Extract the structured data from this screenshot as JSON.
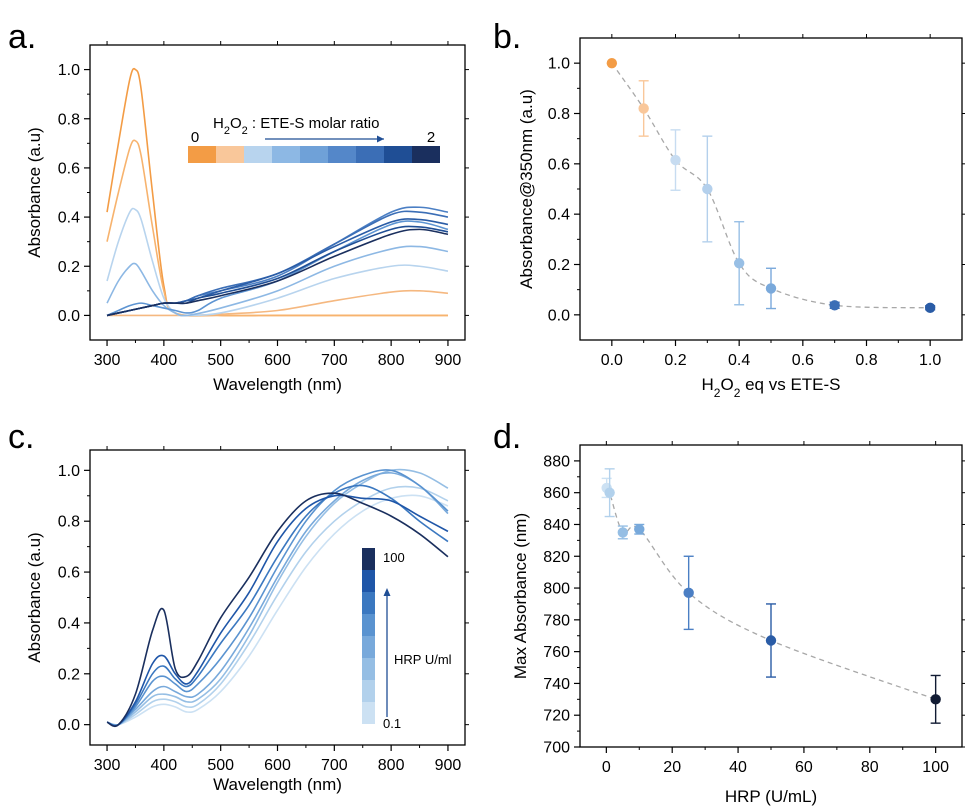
{
  "chart_data": [
    {
      "panel": "a.",
      "type": "line",
      "xlabel": "Wavelength (nm)",
      "ylabel": "Absorbance (a.u)",
      "xlim": [
        270,
        930
      ],
      "ylim": [
        -0.1,
        1.1
      ],
      "xticks": [
        300,
        400,
        500,
        600,
        700,
        800,
        900
      ],
      "yticks": [
        0.0,
        0.2,
        0.4,
        0.6,
        0.8,
        1.0
      ],
      "legend": {
        "title_pre": "H",
        "title_sub": "2",
        "title_mid": "O",
        "title_sub2": "2",
        "title_post": " : ETE-S molar ratio",
        "min_label": "0",
        "max_label": "2",
        "colors": [
          "#F39C45",
          "#F9C79A",
          "#B8D4EE",
          "#8DB8E4",
          "#6FA1D8",
          "#5487C9",
          "#3B6EB6",
          "#1F4E95",
          "#1A2F5E"
        ]
      },
      "series": [
        {
          "color": "#F39C45",
          "x": [
            300,
            320,
            340,
            350,
            360,
            380,
            400,
            420,
            500,
            600,
            700,
            800,
            900
          ],
          "y": [
            0.42,
            0.7,
            0.96,
            1.0,
            0.92,
            0.5,
            0.12,
            0.01,
            0.0,
            0.0,
            0.0,
            0.0,
            0.0
          ]
        },
        {
          "color": "#F7B36E",
          "x": [
            300,
            320,
            340,
            350,
            360,
            380,
            400,
            420,
            500,
            600,
            700,
            800,
            900
          ],
          "y": [
            0.3,
            0.5,
            0.68,
            0.71,
            0.65,
            0.36,
            0.1,
            0.01,
            0.0,
            0.0,
            0.0,
            0.0,
            0.0
          ]
        },
        {
          "color": "#F5B880",
          "x": [
            300,
            320,
            340,
            360,
            380,
            400,
            420,
            440,
            500,
            600,
            700,
            800,
            850,
            900
          ],
          "y": [
            0.0,
            0.0,
            0.0,
            0.0,
            0.0,
            0.0,
            0.0,
            0.0,
            0.005,
            0.02,
            0.06,
            0.095,
            0.1,
            0.09
          ]
        },
        {
          "color": "#B8D4EE",
          "x": [
            300,
            320,
            340,
            350,
            360,
            380,
            400,
            420,
            440,
            500,
            600,
            700,
            800,
            850,
            900
          ],
          "y": [
            0.14,
            0.3,
            0.42,
            0.43,
            0.39,
            0.22,
            0.07,
            0.01,
            0.0,
            0.01,
            0.07,
            0.15,
            0.2,
            0.2,
            0.18
          ]
        },
        {
          "color": "#8DB8E4",
          "x": [
            300,
            320,
            340,
            350,
            360,
            380,
            400,
            420,
            440,
            500,
            600,
            700,
            800,
            850,
            900
          ],
          "y": [
            0.05,
            0.14,
            0.2,
            0.21,
            0.18,
            0.1,
            0.04,
            0.01,
            0.0,
            0.03,
            0.1,
            0.2,
            0.27,
            0.28,
            0.26
          ]
        },
        {
          "color": "#5D94D2",
          "x": [
            300,
            320,
            340,
            360,
            380,
            400,
            420,
            440,
            460,
            500,
            600,
            700,
            800,
            850,
            900
          ],
          "y": [
            0.0,
            0.02,
            0.04,
            0.05,
            0.04,
            0.03,
            0.02,
            0.01,
            0.02,
            0.07,
            0.14,
            0.26,
            0.37,
            0.38,
            0.35
          ]
        },
        {
          "color": "#4B7FC4",
          "x": [
            300,
            340,
            380,
            400,
            420,
            440,
            460,
            500,
            600,
            700,
            800,
            850,
            900
          ],
          "y": [
            0.0,
            0.02,
            0.04,
            0.05,
            0.05,
            0.06,
            0.08,
            0.1,
            0.16,
            0.29,
            0.42,
            0.44,
            0.42
          ]
        },
        {
          "color": "#3B6EB6",
          "x": [
            300,
            340,
            380,
            400,
            420,
            440,
            460,
            500,
            600,
            700,
            800,
            850,
            900
          ],
          "y": [
            0.0,
            0.02,
            0.04,
            0.05,
            0.05,
            0.06,
            0.08,
            0.11,
            0.17,
            0.29,
            0.41,
            0.42,
            0.4
          ]
        },
        {
          "color": "#2A5CA6",
          "x": [
            300,
            340,
            380,
            400,
            420,
            440,
            460,
            500,
            600,
            700,
            800,
            850,
            900
          ],
          "y": [
            0.0,
            0.02,
            0.04,
            0.05,
            0.05,
            0.06,
            0.07,
            0.1,
            0.17,
            0.28,
            0.38,
            0.39,
            0.37
          ]
        },
        {
          "color": "#1F4E95",
          "x": [
            300,
            340,
            380,
            400,
            420,
            440,
            460,
            500,
            600,
            700,
            800,
            850,
            900
          ],
          "y": [
            0.0,
            0.02,
            0.04,
            0.05,
            0.05,
            0.05,
            0.07,
            0.09,
            0.15,
            0.26,
            0.35,
            0.36,
            0.34
          ]
        },
        {
          "color": "#1A2F5E",
          "x": [
            300,
            340,
            380,
            400,
            420,
            440,
            460,
            500,
            600,
            700,
            800,
            850,
            900
          ],
          "y": [
            0.0,
            0.02,
            0.04,
            0.05,
            0.05,
            0.05,
            0.06,
            0.08,
            0.14,
            0.24,
            0.33,
            0.35,
            0.33
          ]
        }
      ]
    },
    {
      "panel": "b.",
      "type": "scatter",
      "xlabel_parts": [
        "H",
        "2",
        "O",
        "2",
        " eq vs ETE-S"
      ],
      "ylabel": "Absorbance@350nm (a.u)",
      "xlim": [
        -0.1,
        1.1
      ],
      "ylim": [
        -0.1,
        1.1
      ],
      "xticks": [
        0.0,
        0.2,
        0.4,
        0.6,
        0.8,
        1.0
      ],
      "yticks": [
        0.0,
        0.2,
        0.4,
        0.6,
        0.8,
        1.0
      ],
      "points": [
        {
          "x": 0.0,
          "y": 1.0,
          "err": 0.0,
          "color": "#F39C45"
        },
        {
          "x": 0.1,
          "y": 0.82,
          "err": 0.11,
          "color": "#F9C79A"
        },
        {
          "x": 0.2,
          "y": 0.615,
          "err": 0.12,
          "color": "#C7DCF1"
        },
        {
          "x": 0.3,
          "y": 0.5,
          "err": 0.21,
          "color": "#B4D0EC"
        },
        {
          "x": 0.4,
          "y": 0.205,
          "err": 0.165,
          "color": "#98BFE5"
        },
        {
          "x": 0.5,
          "y": 0.105,
          "err": 0.08,
          "color": "#7AA9DB"
        },
        {
          "x": 0.7,
          "y": 0.038,
          "err": 0.012,
          "color": "#3B6EB6"
        },
        {
          "x": 1.0,
          "y": 0.028,
          "err": 0.008,
          "color": "#2A5CA6"
        }
      ]
    },
    {
      "panel": "c.",
      "type": "line",
      "xlabel": "Wavelength (nm)",
      "ylabel": "Absorbance (a.u)",
      "xlim": [
        270,
        930
      ],
      "ylim": [
        -0.08,
        1.08
      ],
      "xticks": [
        300,
        400,
        500,
        600,
        700,
        800,
        900
      ],
      "yticks": [
        0.0,
        0.2,
        0.4,
        0.6,
        0.8,
        1.0
      ],
      "legend": {
        "label": "HRP U/ml",
        "max_label": "100",
        "min_label": "0.1",
        "colors": [
          "#1A2F5E",
          "#1F56A8",
          "#3B78C0",
          "#5A93D0",
          "#78A9DB",
          "#95BEE4",
          "#B2D1EC",
          "#CCE1F3"
        ]
      },
      "series": [
        {
          "color": "#CCE1F3",
          "x": [
            300,
            320,
            350,
            380,
            400,
            420,
            440,
            460,
            500,
            550,
            600,
            650,
            700,
            750,
            800,
            850,
            900
          ],
          "y": [
            0.01,
            0.0,
            0.03,
            0.07,
            0.08,
            0.07,
            0.05,
            0.06,
            0.13,
            0.27,
            0.45,
            0.62,
            0.75,
            0.84,
            0.89,
            0.9,
            0.86
          ]
        },
        {
          "color": "#B2D1EC",
          "x": [
            300,
            320,
            350,
            380,
            400,
            420,
            440,
            460,
            500,
            550,
            600,
            650,
            700,
            750,
            800,
            850,
            900
          ],
          "y": [
            0.01,
            0.0,
            0.04,
            0.09,
            0.1,
            0.09,
            0.07,
            0.08,
            0.16,
            0.32,
            0.51,
            0.68,
            0.8,
            0.88,
            0.93,
            0.93,
            0.88
          ]
        },
        {
          "color": "#95BEE4",
          "x": [
            300,
            320,
            350,
            380,
            400,
            420,
            440,
            460,
            500,
            550,
            600,
            650,
            700,
            750,
            800,
            850,
            900
          ],
          "y": [
            0.01,
            0.0,
            0.05,
            0.11,
            0.12,
            0.11,
            0.09,
            0.1,
            0.18,
            0.35,
            0.56,
            0.74,
            0.87,
            0.95,
            1.0,
            0.99,
            0.93
          ]
        },
        {
          "color": "#78A9DB",
          "x": [
            300,
            320,
            350,
            380,
            400,
            420,
            440,
            460,
            500,
            550,
            600,
            650,
            700,
            750,
            800,
            850,
            900
          ],
          "y": [
            0.01,
            0.0,
            0.06,
            0.13,
            0.15,
            0.13,
            0.11,
            0.12,
            0.21,
            0.38,
            0.58,
            0.76,
            0.88,
            0.96,
            0.99,
            0.94,
            0.83
          ]
        },
        {
          "color": "#5A93D0",
          "x": [
            300,
            320,
            350,
            380,
            400,
            420,
            440,
            460,
            500,
            550,
            600,
            650,
            700,
            750,
            800,
            850,
            900
          ],
          "y": [
            0.01,
            0.0,
            0.07,
            0.17,
            0.19,
            0.16,
            0.13,
            0.16,
            0.26,
            0.42,
            0.62,
            0.8,
            0.92,
            0.98,
            1.0,
            0.94,
            0.84
          ]
        },
        {
          "color": "#3B78C0",
          "x": [
            300,
            320,
            350,
            380,
            400,
            420,
            440,
            460,
            500,
            550,
            600,
            650,
            700,
            750,
            800,
            850,
            900
          ],
          "y": [
            0.01,
            0.0,
            0.08,
            0.2,
            0.23,
            0.18,
            0.15,
            0.19,
            0.32,
            0.47,
            0.66,
            0.82,
            0.91,
            0.94,
            0.89,
            0.8,
            0.72
          ]
        },
        {
          "color": "#1F56A8",
          "x": [
            300,
            320,
            350,
            380,
            400,
            420,
            440,
            460,
            500,
            550,
            600,
            650,
            700,
            750,
            800,
            850,
            900
          ],
          "y": [
            0.01,
            0.0,
            0.09,
            0.24,
            0.27,
            0.2,
            0.16,
            0.21,
            0.36,
            0.52,
            0.72,
            0.85,
            0.9,
            0.89,
            0.88,
            0.82,
            0.76
          ]
        },
        {
          "color": "#1A2F5E",
          "x": [
            300,
            320,
            350,
            380,
            400,
            420,
            440,
            460,
            500,
            550,
            600,
            650,
            700,
            750,
            800,
            850,
            900
          ],
          "y": [
            0.01,
            0.0,
            0.12,
            0.37,
            0.45,
            0.22,
            0.19,
            0.25,
            0.42,
            0.58,
            0.76,
            0.88,
            0.91,
            0.87,
            0.82,
            0.75,
            0.66
          ]
        }
      ]
    },
    {
      "panel": "d.",
      "type": "scatter",
      "xlabel": "HRP (U/mL)",
      "ylabel": "Max Absorbance (nm)",
      "xlim": [
        -8,
        108
      ],
      "ylim": [
        700,
        890
      ],
      "xticks": [
        0,
        20,
        40,
        60,
        80,
        100
      ],
      "yticks": [
        700,
        720,
        740,
        760,
        780,
        800,
        820,
        840,
        860,
        880
      ],
      "points": [
        {
          "x": 0.1,
          "y": 863,
          "err": 6,
          "color": "#CCE1F3"
        },
        {
          "x": 1,
          "y": 860,
          "err": 15,
          "color": "#B2D1EC"
        },
        {
          "x": 5,
          "y": 835,
          "err": 4,
          "color": "#95BEE4"
        },
        {
          "x": 10,
          "y": 837,
          "err": 3,
          "color": "#78A9DB"
        },
        {
          "x": 25,
          "y": 797,
          "err": 23,
          "color": "#4B7FC4"
        },
        {
          "x": 50,
          "y": 767,
          "err": 23,
          "color": "#2A5CA6"
        },
        {
          "x": 100,
          "y": 730,
          "err": 15,
          "color": "#111B33"
        }
      ]
    }
  ]
}
